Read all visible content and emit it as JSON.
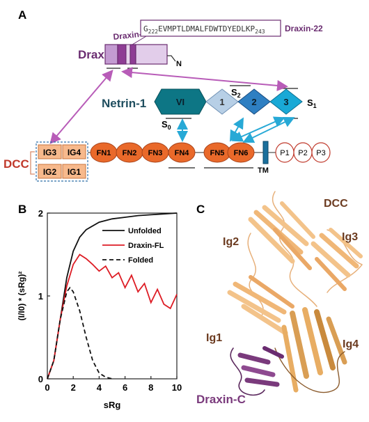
{
  "panels": {
    "a": "A",
    "b": "B",
    "c": "C"
  },
  "panel_a": {
    "draxin_label": "Draxin",
    "draxin_c_label": "Draxin-C",
    "draxin22_label": "Draxin-22",
    "n_terminus": "N",
    "sequence": {
      "start_sub": "222",
      "residues": "EVMPTLDMALFDWTDYEDLKP",
      "end_sub": "243",
      "first": "G"
    },
    "netrin_label": "Netrin-1",
    "netrin_domains": [
      "VI",
      "1",
      "2",
      "3"
    ],
    "sites": {
      "s0": "S",
      "s0_sub": "0",
      "s1": "S",
      "s1_sub": "1",
      "s2": "S",
      "s2_sub": "2"
    },
    "dcc_label": "DCC",
    "ig_domains": [
      "IG3",
      "IG4",
      "IG2",
      "IG1"
    ],
    "fn_domains": [
      "FN1",
      "FN2",
      "FN3",
      "FN4",
      "FN5",
      "FN6"
    ],
    "tm_label": "TM",
    "p_domains": [
      "P1",
      "P2",
      "P3"
    ]
  },
  "panel_b": {
    "chart_data": {
      "type": "line",
      "xlabel": "sRg",
      "ylabel": "(I/I0) * (sRg)²",
      "xlim": [
        0,
        10
      ],
      "ylim": [
        0,
        2
      ],
      "xticks": [
        "0",
        "2",
        "4",
        "6",
        "8",
        "10"
      ],
      "yticks": [
        "0",
        "1",
        "2"
      ],
      "legend_position": "top-right",
      "series": [
        {
          "name": "Unfolded",
          "color": "#111111",
          "dash": "solid",
          "x": [
            0,
            0.5,
            1,
            1.5,
            2,
            2.5,
            3,
            4,
            5,
            6,
            7,
            8,
            9,
            10
          ],
          "y": [
            0,
            0.22,
            0.72,
            1.22,
            1.54,
            1.71,
            1.8,
            1.89,
            1.93,
            1.95,
            1.97,
            1.98,
            1.99,
            2.0
          ]
        },
        {
          "name": "Draxin-FL",
          "color": "#dd1c24",
          "dash": "solid",
          "x": [
            0,
            0.5,
            1,
            1.5,
            2,
            2.5,
            3,
            3.5,
            4,
            4.5,
            5,
            5.5,
            6,
            6.5,
            7,
            7.5,
            8,
            8.5,
            9,
            9.5,
            10
          ],
          "y": [
            0,
            0.22,
            0.72,
            1.12,
            1.38,
            1.5,
            1.45,
            1.38,
            1.3,
            1.36,
            1.22,
            1.28,
            1.1,
            1.25,
            1.05,
            1.15,
            0.92,
            1.08,
            0.9,
            0.85,
            1.02
          ]
        },
        {
          "name": "Folded",
          "color": "#111111",
          "dash": "dashed",
          "x": [
            0,
            0.5,
            1,
            1.5,
            1.75,
            2,
            2.5,
            3,
            3.5,
            4,
            4.5,
            5
          ],
          "y": [
            0,
            0.22,
            0.72,
            1.05,
            1.1,
            1.05,
            0.82,
            0.5,
            0.22,
            0.07,
            0.02,
            0.0
          ]
        }
      ]
    }
  },
  "panel_c": {
    "dcc": "DCC",
    "ig2": "Ig2",
    "ig3": "Ig3",
    "ig1": "Ig1",
    "ig4": "Ig4",
    "draxin_c": "Draxin-C",
    "colors": {
      "dcc": "#f3c38a",
      "draxin": "#7a3a7c",
      "label": "#6b3a1f"
    }
  },
  "colors": {
    "draxin": "#6a2c70",
    "draxin_fill": "#d3b4dd",
    "netrin_teal": "#0d7685",
    "domain1": "#b7cfe6",
    "domain2": "#2e7fc2",
    "domain3": "#19a9d6",
    "fn": "#e9692a",
    "ig": "#f7b98c",
    "arrow_pink": "#b85cb8",
    "arrow_blue": "#27a9d6",
    "dcc": "#c0392b"
  }
}
